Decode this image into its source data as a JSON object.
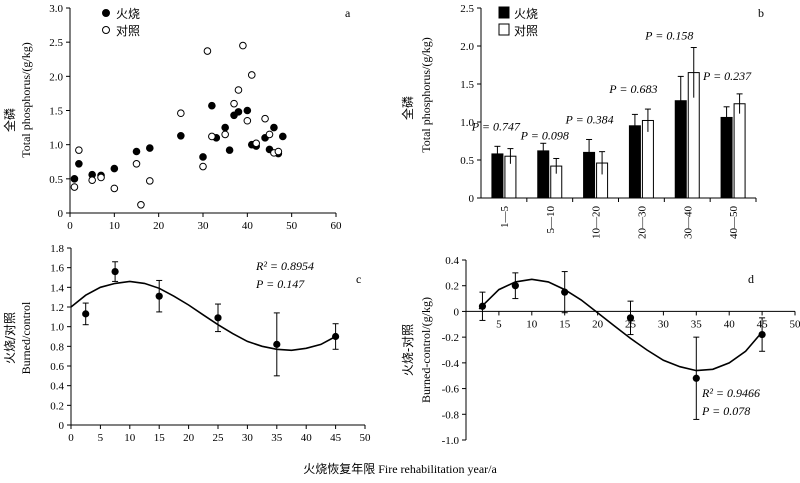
{
  "shared_xlabel": "火烧恢复年限 Fire rehabilitation year/a",
  "chart_data": [
    {
      "panel": "a",
      "type": "scatter",
      "ylabel_cn": "全磷",
      "ylabel_en": "Total phosphorus/(g/kg)",
      "xlim": [
        0,
        60
      ],
      "ylim": [
        0,
        3.0
      ],
      "xticks": [
        0,
        10,
        20,
        30,
        40,
        50,
        60
      ],
      "yticks": [
        0.0,
        0.5,
        1.0,
        1.5,
        2.0,
        2.5,
        3.0
      ],
      "ytick_labels": [
        "0",
        "0.5",
        "1.0",
        "1.5",
        "2.0",
        "2.5",
        "3.0"
      ],
      "legend": "top-left",
      "series": [
        {
          "name": "火烧",
          "marker": "filled",
          "x": [
            1,
            2,
            5,
            7,
            10,
            15,
            18,
            25,
            30,
            32,
            33,
            35,
            36,
            37,
            38,
            40,
            41,
            42,
            44,
            45,
            46,
            47,
            48
          ],
          "y": [
            0.5,
            0.72,
            0.56,
            0.55,
            0.65,
            0.9,
            0.95,
            1.13,
            0.82,
            1.57,
            1.1,
            1.25,
            0.92,
            1.43,
            1.48,
            1.5,
            1.0,
            0.98,
            1.1,
            0.93,
            1.25,
            0.87,
            1.12
          ]
        },
        {
          "name": "对照",
          "marker": "open",
          "x": [
            1,
            2,
            5,
            7,
            10,
            15,
            16,
            18,
            25,
            30,
            31,
            32,
            35,
            37,
            38,
            39,
            40,
            41,
            42,
            44,
            45,
            46,
            47
          ],
          "y": [
            0.38,
            0.92,
            0.48,
            0.52,
            0.36,
            0.72,
            0.12,
            0.47,
            1.46,
            0.68,
            2.37,
            1.12,
            1.15,
            1.6,
            1.8,
            2.45,
            1.35,
            2.02,
            1.02,
            1.38,
            1.15,
            0.88,
            0.9
          ]
        }
      ]
    },
    {
      "panel": "b",
      "type": "bar",
      "ylabel_cn": "全磷",
      "ylabel_en": "Total phosphorus/(g/kg)",
      "ylim": [
        0,
        2.5
      ],
      "yticks": [
        0.0,
        0.5,
        1.0,
        1.5,
        2.0,
        2.5
      ],
      "ytick_labels": [
        "0",
        "0.5",
        "1.0",
        "1.5",
        "2.0",
        "2.5"
      ],
      "categories": [
        "1—5",
        "5—10",
        "10—20",
        "20—30",
        "30—40",
        "40—50"
      ],
      "legend": "top-left",
      "series": [
        {
          "name": "火烧",
          "fill": "#000000",
          "values": [
            0.58,
            0.62,
            0.6,
            0.95,
            1.28,
            1.06
          ],
          "errors": [
            0.1,
            0.1,
            0.17,
            0.15,
            0.32,
            0.14
          ]
        },
        {
          "name": "对照",
          "fill": "#ffffff",
          "values": [
            0.55,
            0.42,
            0.46,
            1.02,
            1.65,
            1.24
          ],
          "errors": [
            0.1,
            0.1,
            0.15,
            0.15,
            0.33,
            0.13
          ]
        }
      ],
      "p_labels": [
        "P = 0.747",
        "P = 0.098",
        "P = 0.384",
        "P = 0.683",
        "P = 0.158",
        "P = 0.237"
      ]
    },
    {
      "panel": "c",
      "type": "scatter",
      "ylabel_cn": "火烧/对照",
      "ylabel_en": "Burned/control",
      "xlim": [
        0,
        50
      ],
      "ylim": [
        0,
        1.8
      ],
      "xticks": [
        0,
        5,
        10,
        15,
        20,
        25,
        30,
        35,
        40,
        45,
        50
      ],
      "yticks": [
        0.0,
        0.2,
        0.4,
        0.6,
        0.8,
        1.0,
        1.2,
        1.4,
        1.6,
        1.8
      ],
      "ytick_labels": [
        "0",
        "0.2",
        "0.4",
        "0.6",
        "0.8",
        "1.0",
        "1.2",
        "1.4",
        "1.6",
        "1.8"
      ],
      "x": [
        2.5,
        7.5,
        15,
        25,
        35,
        45
      ],
      "y": [
        1.13,
        1.56,
        1.31,
        1.09,
        0.82,
        0.9
      ],
      "errors": [
        0.11,
        0.1,
        0.16,
        0.14,
        0.32,
        0.13
      ],
      "fit": {
        "kind": "polynomial",
        "curve_x": [
          0,
          2.5,
          5,
          7.5,
          10,
          12.5,
          15,
          17.5,
          20,
          22.5,
          25,
          27.5,
          30,
          32.5,
          35,
          37.5,
          40,
          42.5,
          45
        ],
        "curve_y": [
          1.2,
          1.32,
          1.4,
          1.44,
          1.46,
          1.44,
          1.39,
          1.31,
          1.22,
          1.12,
          1.02,
          0.93,
          0.85,
          0.8,
          0.77,
          0.76,
          0.78,
          0.82,
          0.9
        ]
      },
      "annotations": [
        "R² = 0.8954",
        "P = 0.147"
      ]
    },
    {
      "panel": "d",
      "type": "scatter",
      "ylabel_cn": "火烧-对照",
      "ylabel_en": "Burned-control/(g/kg)",
      "xlim": [
        0,
        50
      ],
      "ylim": [
        -1.0,
        0.4
      ],
      "xticks": [
        0,
        5,
        10,
        15,
        20,
        25,
        30,
        35,
        40,
        45,
        50
      ],
      "yticks": [
        0.4,
        0.2,
        0.0,
        -0.2,
        -0.4,
        -0.6,
        -0.8,
        -1.0
      ],
      "ytick_labels": [
        "0.4",
        "0.2",
        "0",
        "-0.2",
        "-0.4",
        "-0.6",
        "-0.8",
        "-1.0"
      ],
      "x": [
        2.5,
        7.5,
        15,
        25,
        35,
        45
      ],
      "y": [
        0.04,
        0.2,
        0.15,
        -0.05,
        -0.52,
        -0.18
      ],
      "errors": [
        0.11,
        0.1,
        0.16,
        0.13,
        0.32,
        0.13
      ],
      "fit": {
        "kind": "polynomial",
        "curve_x": [
          2,
          5,
          7.5,
          10,
          12.5,
          15,
          17.5,
          20,
          22.5,
          25,
          27.5,
          30,
          32.5,
          35,
          37.5,
          40,
          42.5,
          45
        ],
        "curve_y": [
          0.02,
          0.17,
          0.23,
          0.25,
          0.23,
          0.17,
          0.09,
          -0.01,
          -0.11,
          -0.21,
          -0.3,
          -0.38,
          -0.43,
          -0.46,
          -0.45,
          -0.4,
          -0.31,
          -0.16
        ]
      },
      "annotations": [
        "R² = 0.9466",
        "P = 0.078"
      ]
    }
  ]
}
